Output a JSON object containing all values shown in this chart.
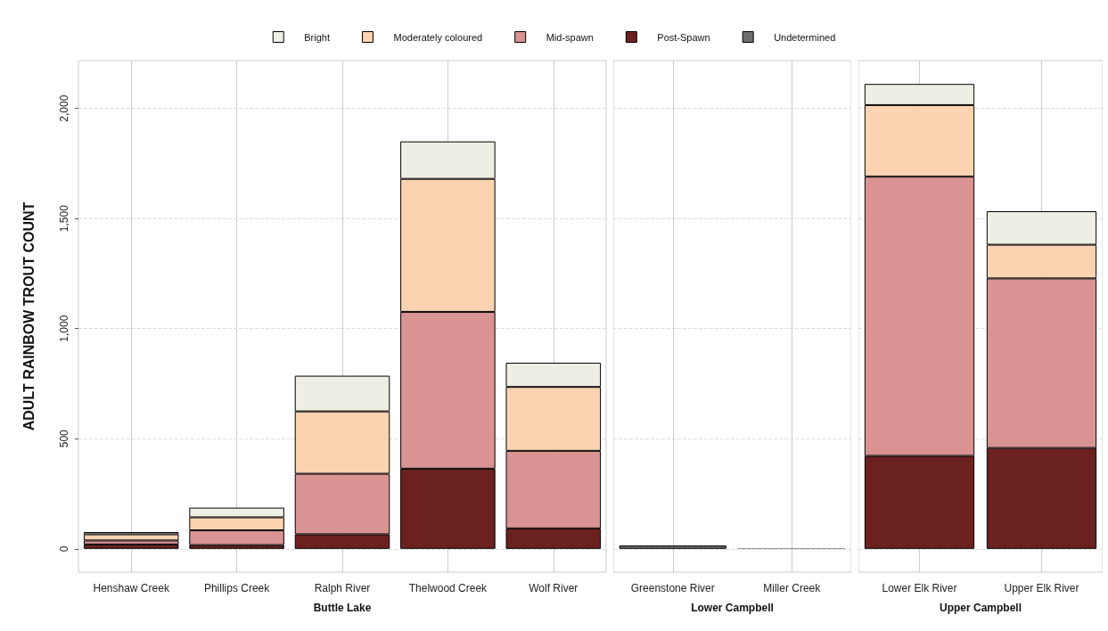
{
  "chart_data": [
    {
      "type": "bar",
      "stacked": true,
      "xlabel": "Buttle Lake",
      "ylabel": "ADULT RAINBOW TROUT COUNT",
      "categories": [
        "Henshaw Creek",
        "Phillips Creek",
        "Ralph River",
        "Thelwood Creek",
        "Wolf River"
      ],
      "ylim": [
        -106,
        2217
      ],
      "yticks": [
        0,
        500,
        {
          "value": 1000,
          "label": "1,000"
        },
        {
          "value": 1500,
          "label": "1,500"
        },
        {
          "value": 2000,
          "label": "2,000"
        }
      ],
      "grid": true,
      "legend": "top",
      "series": [
        {
          "name": "Post-Spawn",
          "color": "#6b2120",
          "values": [
            20,
            17,
            66,
            364,
            93
          ]
        },
        {
          "name": "Mid-spawn",
          "color": "#d99393",
          "values": [
            18,
            67,
            275,
            712,
            352
          ]
        },
        {
          "name": "Moderately coloured",
          "color": "#fcd3b0",
          "values": [
            28,
            59,
            283,
            604,
            290
          ]
        },
        {
          "name": "Bright",
          "color": "#eeeee4",
          "values": [
            10,
            44,
            162,
            170,
            110
          ]
        },
        {
          "name": "Undetermined",
          "color": "#6e6e6e",
          "values": [
            0,
            0,
            0,
            0,
            0
          ]
        }
      ]
    },
    {
      "type": "bar",
      "stacked": true,
      "xlabel": "Lower Campbell",
      "categories": [
        "Greenstone River",
        "Miller Creek"
      ],
      "ylim": [
        -106,
        2217
      ],
      "yticks": [
        {
          "value": 0,
          "label": null
        },
        {
          "value": 500,
          "label": null
        },
        {
          "value": 1000,
          "label": null
        },
        {
          "value": 1500,
          "label": null
        },
        {
          "value": 2000,
          "label": null
        }
      ],
      "grid": true,
      "tick_labels": "x",
      "series": [
        {
          "color": "#6b2120",
          "values": [
            0,
            0
          ]
        },
        {
          "color": "#d99393",
          "values": [
            0,
            0
          ]
        },
        {
          "color": "#fcd3b0",
          "values": [
            0,
            0
          ]
        },
        {
          "color": "#eeeee4",
          "values": [
            0,
            0
          ]
        },
        {
          "color": "#6e6e6e",
          "values": [
            15,
            3
          ]
        }
      ]
    },
    {
      "type": "bar",
      "stacked": true,
      "xlabel": "Upper Campbell",
      "categories": [
        "Lower Elk River",
        "Upper Elk River"
      ],
      "ylim": [
        -106,
        2217
      ],
      "yticks": [
        {
          "value": 0,
          "label": null
        },
        {
          "value": 500,
          "label": null
        },
        {
          "value": 1000,
          "label": null
        },
        {
          "value": 1500,
          "label": null
        },
        {
          "value": 2000,
          "label": null
        }
      ],
      "grid": true,
      "tick_labels": "x",
      "series": [
        {
          "color": "#6b2120",
          "values": [
            422,
            458
          ]
        },
        {
          "color": "#d99393",
          "values": [
            1268,
            770
          ]
        },
        {
          "color": "#fcd3b0",
          "values": [
            325,
            153
          ]
        },
        {
          "color": "#eeeee4",
          "values": [
            96,
            152
          ]
        },
        {
          "color": "#6e6e6e",
          "values": [
            0,
            0
          ]
        }
      ]
    }
  ]
}
